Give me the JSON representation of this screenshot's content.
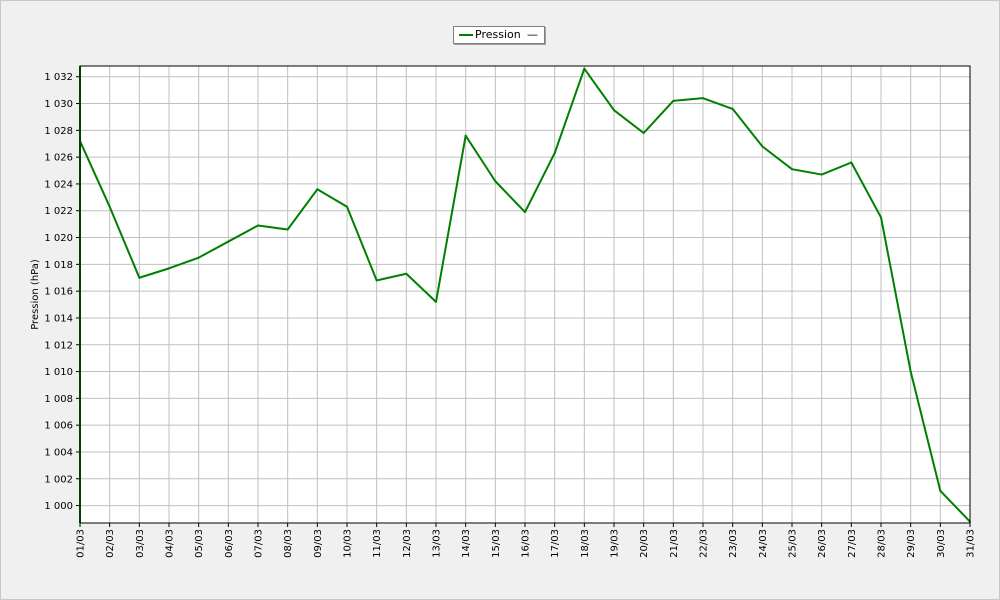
{
  "chart_data": {
    "type": "line",
    "xlabel": "",
    "ylabel": "Pression (hPa)",
    "ylim": [
      998.7,
      1032.8
    ],
    "yticks": [
      "1 000",
      "1 002",
      "1 004",
      "1 006",
      "1 008",
      "1 010",
      "1 012",
      "1 014",
      "1 016",
      "1 018",
      "1 020",
      "1 022",
      "1 024",
      "1 026",
      "1 028",
      "1 030",
      "1 032"
    ],
    "ytick_values": [
      1000,
      1002,
      1004,
      1006,
      1008,
      1010,
      1012,
      1014,
      1016,
      1018,
      1020,
      1022,
      1024,
      1026,
      1028,
      1030,
      1032
    ],
    "categories": [
      "01/03",
      "02/03",
      "03/03",
      "04/03",
      "05/03",
      "06/03",
      "07/03",
      "08/03",
      "09/03",
      "10/03",
      "11/03",
      "12/03",
      "13/03",
      "14/03",
      "15/03",
      "16/03",
      "17/03",
      "18/03",
      "19/03",
      "20/03",
      "21/03",
      "22/03",
      "23/03",
      "24/03",
      "25/03",
      "26/03",
      "27/03",
      "28/03",
      "29/03",
      "30/03",
      "31/03"
    ],
    "grid": true,
    "legend_position": "top-center",
    "series": [
      {
        "name": "Pression",
        "color": "#008000",
        "values": [
          1027.2,
          1022.3,
          1017.0,
          1017.7,
          1018.5,
          1019.7,
          1020.9,
          1020.6,
          1023.6,
          1022.3,
          1016.8,
          1017.3,
          1015.2,
          1027.6,
          1024.2,
          1021.9,
          1026.3,
          1032.6,
          1029.5,
          1027.8,
          1030.2,
          1030.4,
          1029.6,
          1026.8,
          1025.1,
          1024.7,
          1025.6,
          1021.5,
          1010.0,
          1001.1,
          998.8
        ]
      }
    ]
  },
  "legend": {
    "label": "Pression",
    "marker": "—"
  }
}
